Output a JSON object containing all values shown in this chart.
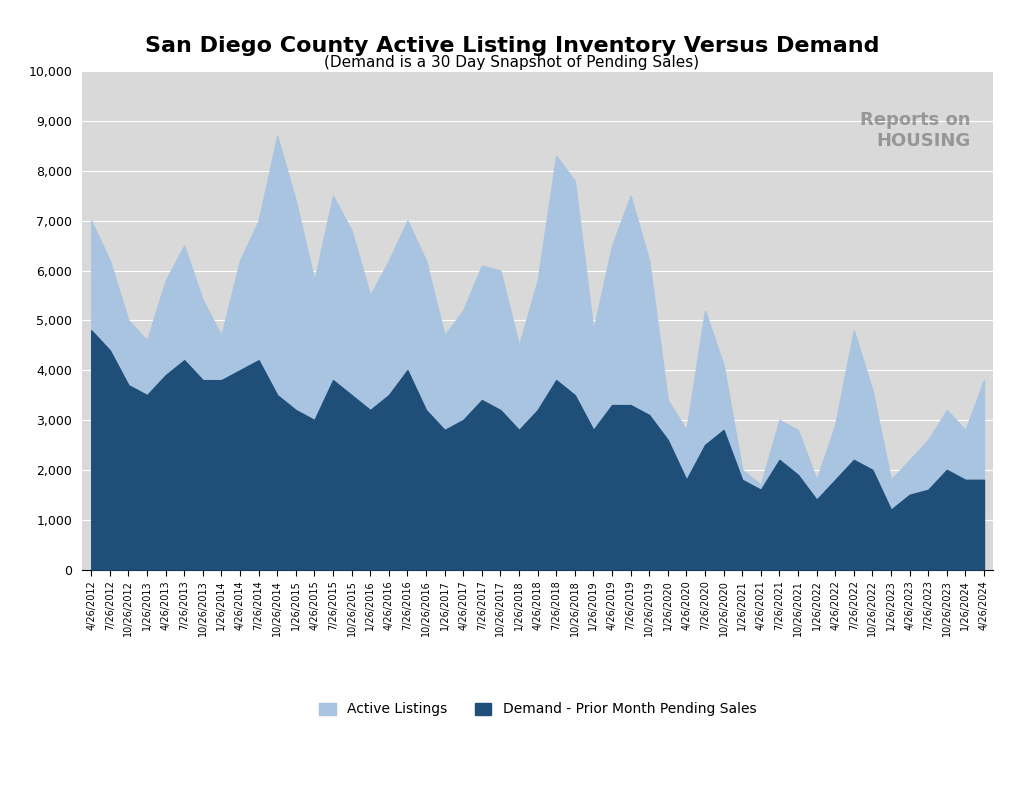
{
  "title": "San Diego County Active Listing Inventory Versus Demand",
  "subtitle": "(Demand is a 30 Day Snapshot of Pending Sales)",
  "legend_labels": [
    "Active Listings",
    "Demand - Prior Month Pending Sales"
  ],
  "active_color": "#a8c4e0",
  "demand_color": "#1f4e79",
  "background_color": "#d9d9d9",
  "ylim": [
    0,
    10000
  ],
  "yticks": [
    0,
    1000,
    2000,
    3000,
    4000,
    5000,
    6000,
    7000,
    8000,
    9000,
    10000
  ],
  "x_labels": [
    "4/26/2012",
    "7/26/2012",
    "10/26/2012",
    "1/26/2013",
    "4/26/2013",
    "7/26/2013",
    "10/26/2013",
    "1/26/2014",
    "4/26/2014",
    "7/26/2014",
    "10/26/2014",
    "1/26/2015",
    "4/26/2015",
    "7/26/2015",
    "10/26/2015",
    "1/26/2016",
    "4/26/2016",
    "7/26/2016",
    "10/26/2016",
    "1/26/2017",
    "4/26/2017",
    "7/26/2017",
    "10/26/2017",
    "1/26/2018",
    "4/26/2018",
    "7/26/2018",
    "10/26/2018",
    "1/26/2019",
    "4/26/2019",
    "7/26/2019",
    "10/26/2019",
    "1/26/2020",
    "4/26/2020",
    "7/26/2020",
    "10/26/2020",
    "1/26/2021",
    "4/26/2021",
    "7/26/2021",
    "10/26/2021",
    "1/26/2022",
    "4/26/2022",
    "7/26/2022",
    "10/26/2022",
    "1/26/2023",
    "4/26/2023",
    "7/26/2023",
    "10/26/2023",
    "1/26/2024",
    "4/26/2024"
  ],
  "active_listings": [
    7000,
    6200,
    5000,
    4600,
    5800,
    6500,
    5400,
    4700,
    6200,
    7000,
    8700,
    7400,
    5800,
    7500,
    6800,
    5500,
    6200,
    7000,
    6200,
    4700,
    5200,
    6100,
    6000,
    4500,
    5800,
    8300,
    7800,
    4800,
    6500,
    7500,
    6200,
    3400,
    2800,
    5200,
    4100,
    2000,
    1700,
    3000,
    2800,
    1800,
    2900,
    4800,
    3600,
    1800,
    2200,
    2600,
    3200,
    2800,
    3800
  ],
  "demand": [
    4800,
    4400,
    3700,
    3500,
    3900,
    4200,
    3800,
    3800,
    4000,
    4200,
    3500,
    3200,
    3000,
    3800,
    3500,
    3200,
    3500,
    4000,
    3200,
    2800,
    3000,
    3400,
    3200,
    2800,
    3200,
    3800,
    3500,
    2800,
    3300,
    3300,
    3100,
    2600,
    1800,
    2500,
    2800,
    1800,
    1600,
    2200,
    1900,
    1400,
    1800,
    2200,
    2000,
    1200,
    1500,
    1600,
    2000,
    1800,
    1800
  ]
}
